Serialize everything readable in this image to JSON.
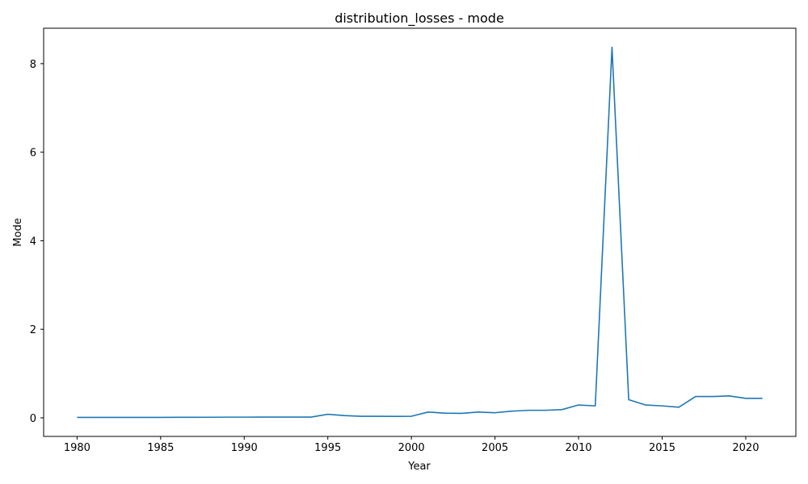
{
  "chart_data": {
    "type": "line",
    "title": "distribution_losses - mode",
    "xlabel": "Year",
    "ylabel": "Mode",
    "xlim": [
      1978,
      2023
    ],
    "ylim": [
      -0.42,
      8.8
    ],
    "xticks": [
      1980,
      1985,
      1990,
      1995,
      2000,
      2005,
      2010,
      2015,
      2020
    ],
    "yticks": [
      0,
      2,
      4,
      6,
      8
    ],
    "grid": false,
    "colors": {
      "series": "#1f77b4"
    },
    "series": [
      {
        "x": [
          1980,
          1981,
          1982,
          1983,
          1984,
          1985,
          1986,
          1987,
          1988,
          1989,
          1990,
          1991,
          1992,
          1993,
          1994,
          1995,
          1996,
          1997,
          1998,
          1999,
          2000,
          2001,
          2002,
          2003,
          2004,
          2005,
          2006,
          2007,
          2008,
          2009,
          2010,
          2011,
          2012,
          2013,
          2014,
          2015,
          2016,
          2017,
          2018,
          2019,
          2020,
          2021
        ],
        "values": [
          0.01,
          0.01,
          0.01,
          0.01,
          0.01,
          0.01,
          0.012,
          0.012,
          0.013,
          0.015,
          0.015,
          0.016,
          0.016,
          0.016,
          0.016,
          0.08,
          0.05,
          0.035,
          0.035,
          0.033,
          0.035,
          0.13,
          0.105,
          0.1,
          0.13,
          0.115,
          0.15,
          0.17,
          0.17,
          0.185,
          0.29,
          0.27,
          8.37,
          0.41,
          0.29,
          0.27,
          0.24,
          0.48,
          0.48,
          0.495,
          0.44,
          0.44
        ]
      }
    ]
  }
}
